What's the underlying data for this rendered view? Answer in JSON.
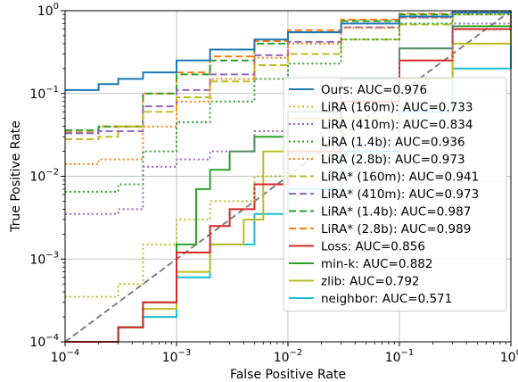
{
  "chart_data": {
    "type": "line",
    "title": "",
    "xlabel": "False Positive Rate",
    "ylabel": "True Positive Rate",
    "xscale": "log",
    "yscale": "log",
    "xlim": [
      0.0001,
      1
    ],
    "ylim": [
      0.0001,
      1
    ],
    "x_ticks": [
      {
        "base": "10",
        "exp": "−4"
      },
      {
        "base": "10",
        "exp": "−3"
      },
      {
        "base": "10",
        "exp": "−2"
      },
      {
        "base": "10",
        "exp": "−1"
      },
      {
        "base": "10",
        "exp": "0"
      }
    ],
    "y_ticks": [
      {
        "base": "10",
        "exp": "−4"
      },
      {
        "base": "10",
        "exp": "−3"
      },
      {
        "base": "10",
        "exp": "−2"
      },
      {
        "base": "10",
        "exp": "−1"
      },
      {
        "base": "10",
        "exp": "0"
      }
    ],
    "grid": true,
    "legend_position": "lower-right",
    "diagonal_color": "#808080",
    "series": [
      {
        "name": "Ours: AUC=0.976",
        "color": "#1f77b4",
        "style": "solid",
        "x": [
          0.0001,
          0.0002,
          0.0003,
          0.0005,
          0.001,
          0.002,
          0.005,
          0.01,
          0.03,
          0.1,
          0.3,
          1
        ],
        "y": [
          0.11,
          0.13,
          0.15,
          0.18,
          0.25,
          0.34,
          0.45,
          0.55,
          0.7,
          0.85,
          0.95,
          1
        ]
      },
      {
        "name": "LiRA (160m): AUC=0.733",
        "color": "#bcbd22",
        "style": "dotted",
        "x": [
          0.0001,
          0.0003,
          0.0005,
          0.001,
          0.002,
          0.005,
          0.01,
          0.03,
          0.1,
          0.3,
          1
        ],
        "y": [
          0.00035,
          0.0005,
          0.0015,
          0.003,
          0.005,
          0.01,
          0.018,
          0.05,
          0.15,
          0.4,
          1
        ]
      },
      {
        "name": "LiRA (410m): AUC=0.834",
        "color": "#9467bd",
        "style": "dotted",
        "x": [
          0.0001,
          0.0002,
          0.0003,
          0.0005,
          0.001,
          0.002,
          0.005,
          0.01,
          0.03,
          0.1,
          0.3,
          1
        ],
        "y": [
          0.0035,
          0.0035,
          0.004,
          0.013,
          0.016,
          0.02,
          0.035,
          0.06,
          0.15,
          0.35,
          0.7,
          1
        ]
      },
      {
        "name": "LiRA (1.4b): AUC=0.936",
        "color": "#2ca02c",
        "style": "dotted",
        "x": [
          0.0001,
          0.0003,
          0.0005,
          0.001,
          0.002,
          0.005,
          0.01,
          0.03,
          0.1,
          0.3,
          1
        ],
        "y": [
          0.0065,
          0.008,
          0.02,
          0.045,
          0.08,
          0.15,
          0.23,
          0.45,
          0.7,
          0.9,
          1
        ]
      },
      {
        "name": "LiRA (2.8b): AUC=0.973",
        "color": "#ff7f0e",
        "style": "dotted",
        "x": [
          0.0001,
          0.0002,
          0.0005,
          0.001,
          0.002,
          0.005,
          0.01,
          0.03,
          0.1,
          0.3,
          1
        ],
        "y": [
          0.014,
          0.016,
          0.04,
          0.08,
          0.15,
          0.27,
          0.4,
          0.62,
          0.82,
          0.95,
          1
        ]
      },
      {
        "name": "LiRA* (160m): AUC=0.941",
        "color": "#bcbd22",
        "style": "dashed",
        "x": [
          0.0001,
          0.0002,
          0.0003,
          0.0005,
          0.001,
          0.002,
          0.005,
          0.01,
          0.03,
          0.1,
          0.3,
          1
        ],
        "y": [
          0.028,
          0.03,
          0.04,
          0.06,
          0.09,
          0.14,
          0.22,
          0.3,
          0.45,
          0.68,
          0.9,
          1
        ]
      },
      {
        "name": "LiRA* (410m): AUC=0.973",
        "color": "#9467bd",
        "style": "dashed",
        "x": [
          0.0001,
          0.0002,
          0.0005,
          0.001,
          0.002,
          0.005,
          0.01,
          0.03,
          0.1,
          0.3,
          1
        ],
        "y": [
          0.033,
          0.035,
          0.07,
          0.11,
          0.17,
          0.29,
          0.42,
          0.63,
          0.83,
          0.96,
          1
        ]
      },
      {
        "name": "LiRA* (1.4b): AUC=0.987",
        "color": "#2ca02c",
        "style": "dashed",
        "x": [
          0.0001,
          0.0002,
          0.0005,
          0.001,
          0.002,
          0.005,
          0.01,
          0.03,
          0.1,
          0.3,
          1
        ],
        "y": [
          0.036,
          0.04,
          0.1,
          0.17,
          0.25,
          0.4,
          0.55,
          0.75,
          0.9,
          0.98,
          1
        ]
      },
      {
        "name": "LiRA* (2.8b): AUC=0.989",
        "color": "#ff7f0e",
        "style": "dashed",
        "x": [
          0.0001,
          0.0002,
          0.0005,
          0.001,
          0.002,
          0.005,
          0.01,
          0.03,
          0.1,
          0.3,
          1
        ],
        "y": [
          0.034,
          0.04,
          0.1,
          0.18,
          0.28,
          0.43,
          0.58,
          0.78,
          0.92,
          0.98,
          1
        ]
      },
      {
        "name": "Loss: AUC=0.856",
        "color": "#d62728",
        "style": "solid",
        "x": [
          0.0001,
          0.0003,
          0.0005,
          0.001,
          0.002,
          0.003,
          0.005,
          0.01,
          0.03,
          0.1,
          0.3,
          1
        ],
        "y": [
          0.0001,
          0.00015,
          0.0003,
          0.0012,
          0.0025,
          0.004,
          0.008,
          0.02,
          0.08,
          0.25,
          0.6,
          1
        ]
      },
      {
        "name": "min-k: AUC=0.882",
        "color": "#2ca02c",
        "style": "solid",
        "x": [
          0.0001,
          0.0003,
          0.0005,
          0.001,
          0.0015,
          0.002,
          0.003,
          0.005,
          0.01,
          0.03,
          0.1,
          0.3,
          1
        ],
        "y": [
          0.0001,
          0.00015,
          0.0003,
          0.0015,
          0.007,
          0.012,
          0.02,
          0.03,
          0.06,
          0.15,
          0.35,
          0.65,
          1
        ]
      },
      {
        "name": "zlib: AUC=0.792",
        "color": "#bcbd22",
        "style": "solid",
        "x": [
          0.0001,
          0.0003,
          0.0005,
          0.001,
          0.002,
          0.004,
          0.006,
          0.01,
          0.03,
          0.1,
          0.3,
          1
        ],
        "y": [
          0.0001,
          0.00015,
          0.00025,
          0.0007,
          0.0015,
          0.003,
          0.02,
          0.05,
          0.08,
          0.15,
          0.4,
          1
        ]
      },
      {
        "name": "neighbor: AUC=0.571",
        "color": "#17becf",
        "style": "solid",
        "x": [
          0.0001,
          0.0003,
          0.0005,
          0.001,
          0.002,
          0.005,
          0.01,
          0.03,
          0.1,
          0.3,
          1
        ],
        "y": [
          0.0001,
          0.00015,
          0.0002,
          0.0006,
          0.0015,
          0.0035,
          0.007,
          0.02,
          0.06,
          0.2,
          1
        ]
      }
    ]
  }
}
